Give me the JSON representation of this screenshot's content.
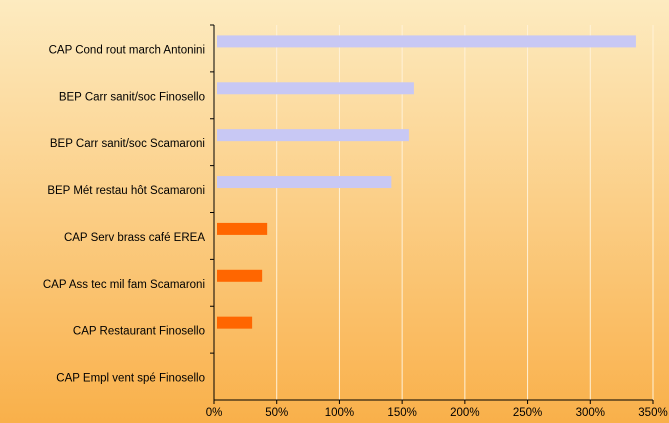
{
  "chart_data": {
    "type": "bar",
    "orientation": "horizontal",
    "categories": [
      "CAP Cond rout march Antonini",
      "BEP Carr sanit/soc Finosello",
      "BEP Carr sanit/soc Scamaroni",
      "BEP Mét restau hôt Scamaroni",
      "CAP Serv brass café EREA",
      "CAP Ass tec mil fam Scamaroni",
      "CAP Restaurant Finosello",
      "CAP Empl vent spé Finosello"
    ],
    "values": [
      334,
      157,
      153,
      139,
      40,
      36,
      28,
      0
    ],
    "colors": [
      "#c8c8f4",
      "#c8c8f4",
      "#c8c8f4",
      "#c8c8f4",
      "#ff6600",
      "#ff6600",
      "#ff6600",
      "#ff6600"
    ],
    "xlim": [
      0,
      350
    ],
    "xticks": [
      {
        "value": 0,
        "label": "0%"
      },
      {
        "value": 50,
        "label": "50%"
      },
      {
        "value": 100,
        "label": "100%"
      },
      {
        "value": 150,
        "label": "150%"
      },
      {
        "value": 200,
        "label": "200%"
      },
      {
        "value": 250,
        "label": "250%"
      },
      {
        "value": 300,
        "label": "300%"
      },
      {
        "value": 350,
        "label": "350%"
      }
    ],
    "grid": true
  }
}
